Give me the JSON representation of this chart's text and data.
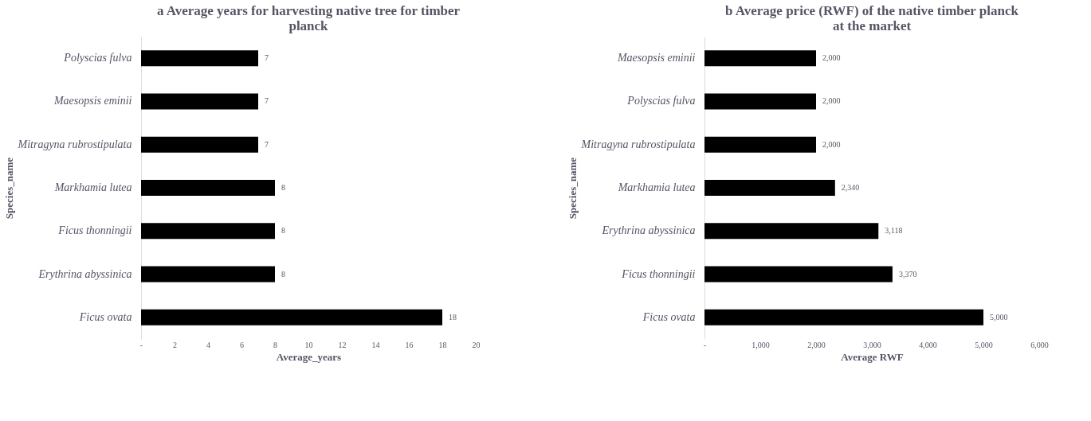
{
  "chart_data": [
    {
      "type": "bar",
      "orientation": "horizontal",
      "title": "a  Average years for harvesting native tree for timber planck",
      "xlabel": "Average_years",
      "ylabel": "Species_name",
      "categories": [
        "Polyscias fulva",
        "Maesopsis eminii",
        "Mitragyna rubrostipulata",
        "Markhamia lutea",
        "Ficus thonningii",
        "Erythrina abyssinica",
        "Ficus ovata"
      ],
      "series": [
        {
          "color": "#000000",
          "values": [
            7,
            7,
            7,
            8,
            8,
            8,
            18
          ]
        }
      ],
      "xlim": [
        0,
        20
      ],
      "xticks": [
        {
          "value": 0,
          "label": "-"
        },
        2,
        4,
        6,
        8,
        10,
        12,
        14,
        16,
        18,
        20
      ],
      "data_labels": true,
      "grid": false
    },
    {
      "type": "bar",
      "orientation": "horizontal",
      "title": "b  Average price (RWF) of the native timber planck at the market",
      "xlabel": "Average RWF",
      "ylabel": "Species_name",
      "categories": [
        "Maesopsis eminii",
        "Polyscias fulva",
        "Mitragyna rubrostipulata",
        "Markhamia lutea",
        "Erythrina abyssinica",
        "Ficus thonningii",
        "Ficus ovata"
      ],
      "series": [
        {
          "color": "#000000",
          "values": [
            2000,
            2000,
            2000,
            2340,
            3118,
            3370,
            5000
          ],
          "value_labels": [
            "2,000",
            "2,000",
            "2,000",
            "2,340",
            "3,118",
            "3,370",
            "5,000"
          ]
        }
      ],
      "xlim": [
        0,
        6000
      ],
      "xticks": [
        {
          "value": 0,
          "label": "-"
        },
        {
          "value": 1000,
          "label": "1,000"
        },
        {
          "value": 2000,
          "label": "2,000"
        },
        {
          "value": 3000,
          "label": "3,000"
        },
        {
          "value": 4000,
          "label": "4,000"
        },
        {
          "value": 5000,
          "label": "5,000"
        },
        {
          "value": 6000,
          "label": "6,000"
        }
      ],
      "grid": false
    }
  ]
}
